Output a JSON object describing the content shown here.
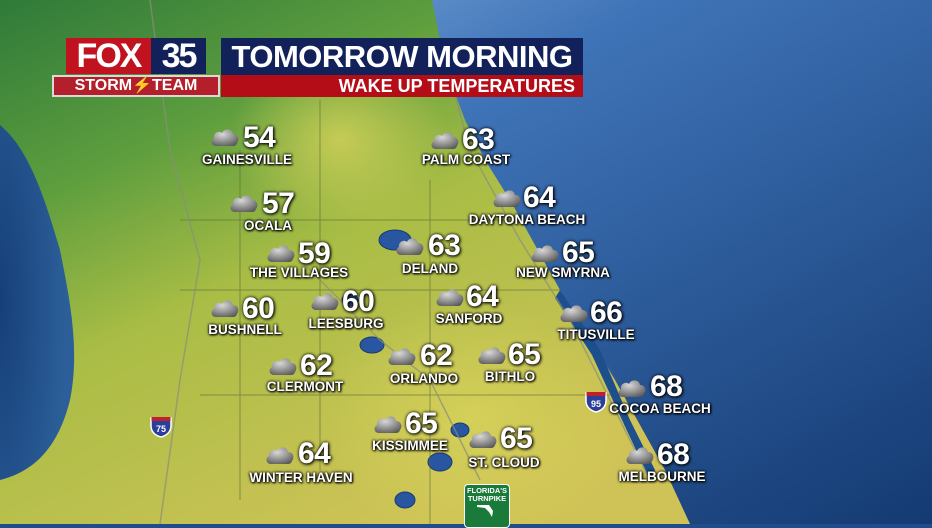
{
  "header": {
    "logo_fox": "FOX",
    "logo_number": "35",
    "logo_team": "STORM⚡TEAM",
    "title": "TOMORROW MORNING",
    "subtitle": "WAKE UP TEMPERATURES"
  },
  "colors": {
    "navy": "#13215a",
    "red": "#b50d18",
    "ocean": "#1f4c8c",
    "land_green": "#3f8a3a",
    "land_yellow": "#c9c254"
  },
  "cities": [
    {
      "name": "GAINESVILLE",
      "temp": "54",
      "icon": "cloudy-icon"
    },
    {
      "name": "PALM COAST",
      "temp": "63",
      "icon": "cloudy-icon"
    },
    {
      "name": "OCALA",
      "temp": "57",
      "icon": "cloudy-icon"
    },
    {
      "name": "DAYTONA BEACH",
      "temp": "64",
      "icon": "cloudy-icon"
    },
    {
      "name": "THE VILLAGES",
      "temp": "59",
      "icon": "cloudy-icon"
    },
    {
      "name": "DELAND",
      "temp": "63",
      "icon": "cloudy-icon"
    },
    {
      "name": "NEW SMYRNA",
      "temp": "65",
      "icon": "cloudy-icon"
    },
    {
      "name": "BUSHNELL",
      "temp": "60",
      "icon": "cloudy-icon"
    },
    {
      "name": "LEESBURG",
      "temp": "60",
      "icon": "cloudy-icon"
    },
    {
      "name": "SANFORD",
      "temp": "64",
      "icon": "cloudy-icon"
    },
    {
      "name": "TITUSVILLE",
      "temp": "66",
      "icon": "cloudy-icon"
    },
    {
      "name": "CLERMONT",
      "temp": "62",
      "icon": "cloudy-icon"
    },
    {
      "name": "ORLANDO",
      "temp": "62",
      "icon": "cloudy-icon"
    },
    {
      "name": "BITHLO",
      "temp": "65",
      "icon": "cloudy-icon"
    },
    {
      "name": "COCOA BEACH",
      "temp": "68",
      "icon": "cloudy-icon"
    },
    {
      "name": "KISSIMMEE",
      "temp": "65",
      "icon": "cloudy-icon"
    },
    {
      "name": "ST. CLOUD",
      "temp": "65",
      "icon": "cloudy-icon"
    },
    {
      "name": "WINTER HAVEN",
      "temp": "64",
      "icon": "cloudy-icon"
    },
    {
      "name": "MELBOURNE",
      "temp": "68",
      "icon": "cloudy-icon"
    }
  ],
  "highways": {
    "i75": "75",
    "i95": "95",
    "turnpike": "FLORIDA'S TURNPIKE"
  }
}
